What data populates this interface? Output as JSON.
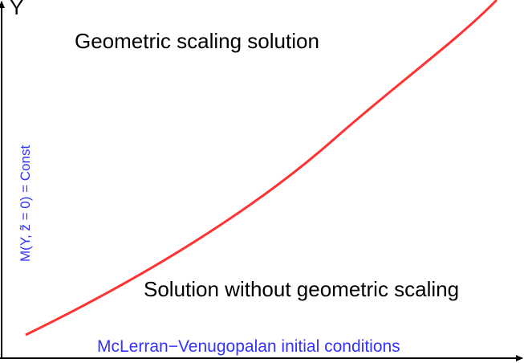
{
  "axis": {
    "y_label": "Y"
  },
  "labels": {
    "upper_region": "Geometric scaling solution",
    "lower_region": "Solution without geometric scaling",
    "x_axis_condition": "McLerran−Venugopalan initial  conditions",
    "y_axis_condition": "M(Y, z̃ = 0) = Const"
  },
  "colors": {
    "curve": "#ff3333",
    "annotation": "#3333ff",
    "axes": "#000000"
  }
}
